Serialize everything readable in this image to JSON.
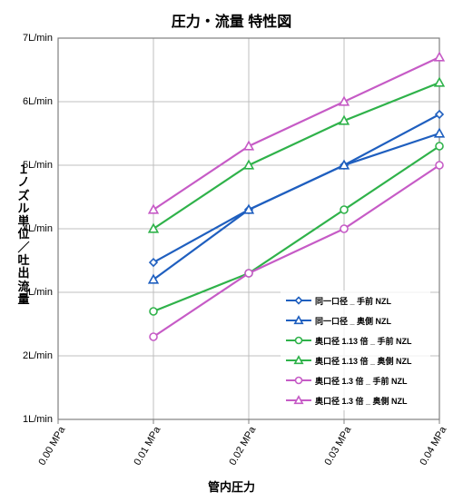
{
  "title": "圧力・流量 特性図",
  "ylabel": "１ノズル単位／吐出流量",
  "xlabel": "管内圧力",
  "ylim": [
    1,
    7
  ],
  "xlim": [
    0,
    4
  ],
  "y_ticks": [
    1,
    2,
    3,
    4,
    5,
    6,
    7
  ],
  "y_tick_labels": [
    "1L/min",
    "2L/min",
    "3L/min",
    "4L/min",
    "5L/min",
    "6L/min",
    "7L/min"
  ],
  "x_ticks": [
    0,
    1,
    2,
    3,
    4
  ],
  "x_tick_labels": [
    "0.00 MPa",
    "0.01 MPa",
    "0.02 MPa",
    "0.03 MPa",
    "0.04 MPa"
  ],
  "grid_color": "#bfbfbf",
  "axis_color": "#808080",
  "background_color": "#ffffff",
  "marker_size": 4,
  "line_width": 2.2,
  "series": [
    {
      "name": "同一口径 _ 手前 NZL",
      "color": "#1f5fbf",
      "marker": "diamond",
      "x": [
        1,
        2,
        3,
        4
      ],
      "y": [
        3.47,
        4.3,
        5.0,
        5.8
      ]
    },
    {
      "name": "同一口径 _ 奥側 NZL",
      "color": "#1f5fbf",
      "marker": "triangle",
      "x": [
        1,
        2,
        3,
        4
      ],
      "y": [
        3.2,
        4.3,
        5.0,
        5.5
      ]
    },
    {
      "name": "奥口径 1.13 倍 _ 手前 NZL",
      "color": "#2fb24a",
      "marker": "circle",
      "x": [
        1,
        2,
        3,
        4
      ],
      "y": [
        2.7,
        3.3,
        4.3,
        5.3
      ]
    },
    {
      "name": "奥口径 1.13 倍 _ 奥側 NZL",
      "color": "#2fb24a",
      "marker": "triangle",
      "x": [
        1,
        2,
        3,
        4
      ],
      "y": [
        4.0,
        5.0,
        5.7,
        6.3
      ]
    },
    {
      "name": "奥口径 1.3 倍 _ 手前 NZL",
      "color": "#c65bc6",
      "marker": "circle",
      "x": [
        1,
        2,
        3,
        4
      ],
      "y": [
        2.3,
        3.3,
        4.0,
        5.0
      ]
    },
    {
      "name": "奥口径 1.3 倍 _ 奥側 NZL",
      "color": "#c65bc6",
      "marker": "triangle",
      "x": [
        1,
        2,
        3,
        4
      ],
      "y": [
        4.3,
        5.3,
        6.0,
        6.7
      ]
    }
  ]
}
